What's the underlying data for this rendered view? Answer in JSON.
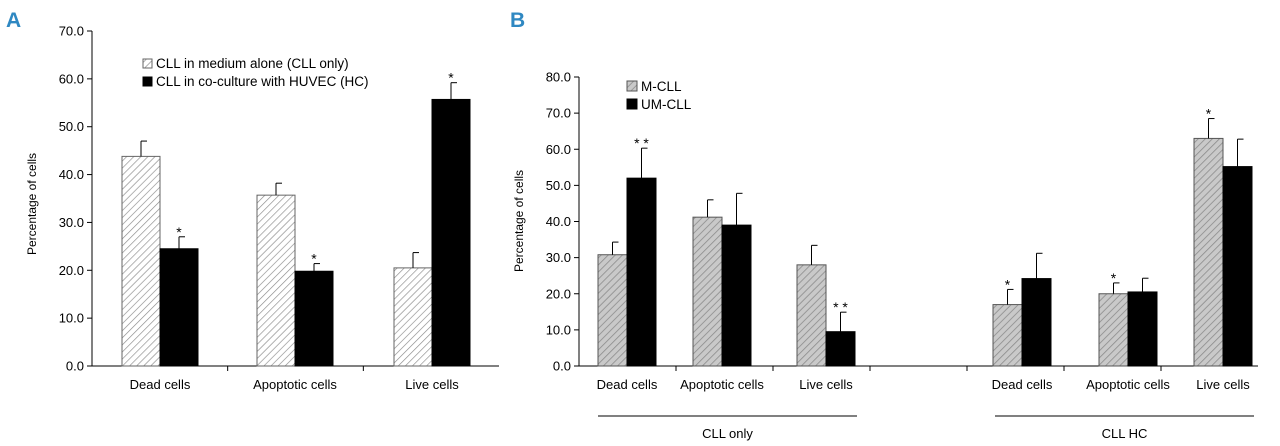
{
  "panel_labels": [
    "A",
    "B"
  ],
  "chart_data": [
    {
      "type": "bar",
      "panel": "A",
      "title": "",
      "xlabel": "",
      "ylabel": "Percentage of cells",
      "ylim": [
        0,
        70
      ],
      "yticks": [
        "0.0",
        "10.0",
        "20.0",
        "30.0",
        "40.0",
        "50.0",
        "60.0",
        "70.0"
      ],
      "categories": [
        "Dead cells",
        "Apoptotic cells",
        "Live cells"
      ],
      "legend_position": "top-center",
      "series": [
        {
          "name": "CLL in medium alone (CLL only)",
          "pattern": "hatched",
          "values": [
            43.8,
            35.7,
            20.5
          ],
          "errors": [
            3.2,
            2.5,
            3.2
          ]
        },
        {
          "name": "CLL in co-culture with HUVEC (HC)",
          "pattern": "solid",
          "color": "#000000",
          "values": [
            24.5,
            19.8,
            55.7
          ],
          "errors": [
            2.5,
            1.6,
            3.5
          ]
        }
      ],
      "annotations": [
        {
          "category": "Dead cells",
          "series": 1,
          "text": "*"
        },
        {
          "category": "Apoptotic cells",
          "series": 1,
          "text": "*"
        },
        {
          "category": "Live cells",
          "series": 1,
          "text": "*"
        }
      ]
    },
    {
      "type": "bar",
      "panel": "B",
      "title": "",
      "xlabel": "",
      "ylabel": "Percentage of cells",
      "ylim": [
        0,
        80
      ],
      "yticks": [
        "0.0",
        "10.0",
        "20.0",
        "30.0",
        "40.0",
        "50.0",
        "60.0",
        "70.0",
        "80.0"
      ],
      "categories": [
        "Dead cells",
        "Apoptotic cells",
        "Live cells",
        "",
        "Dead cells",
        "Apoptotic cells",
        "Live cells"
      ],
      "groups": [
        {
          "label": "CLL only",
          "from": 0,
          "to": 2
        },
        {
          "label": "CLL HC",
          "from": 4,
          "to": 6
        }
      ],
      "legend_position": "top-left",
      "series": [
        {
          "name": "M-CLL",
          "pattern": "hatched-gray",
          "values": [
            30.8,
            41.2,
            28.0,
            null,
            17.0,
            20.0,
            63.0
          ],
          "errors": [
            3.5,
            4.8,
            5.4,
            null,
            4.2,
            3.0,
            5.5
          ]
        },
        {
          "name": "UM-CLL",
          "pattern": "solid",
          "color": "#000000",
          "values": [
            52.0,
            39.0,
            9.5,
            null,
            24.2,
            20.5,
            55.2
          ],
          "errors": [
            8.3,
            8.8,
            5.4,
            null,
            7.0,
            3.8,
            7.6
          ]
        }
      ],
      "annotations": [
        {
          "category_index": 0,
          "series": 1,
          "text": "**"
        },
        {
          "category_index": 2,
          "series": 1,
          "text": "**"
        },
        {
          "category_index": 4,
          "series": 0,
          "text": "*"
        },
        {
          "category_index": 5,
          "series": 0,
          "text": "*"
        },
        {
          "category_index": 6,
          "series": 0,
          "text": "*"
        }
      ]
    }
  ]
}
